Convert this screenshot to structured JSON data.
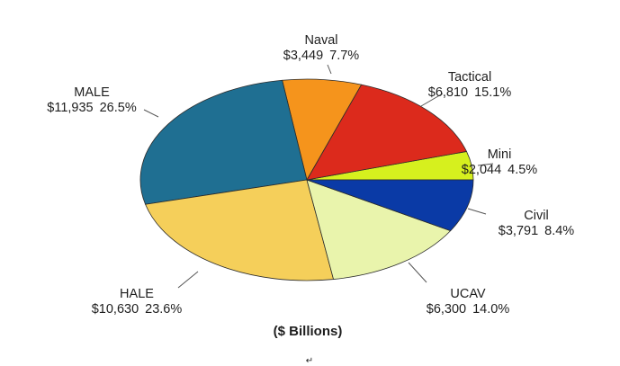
{
  "chart_data": {
    "type": "pie",
    "title": "",
    "unit_note": "($ Billions)",
    "start_angle_deg": 0,
    "direction": "counterclockwise",
    "slices": [
      {
        "name": "Mini",
        "amount": "$2,044",
        "percent": "4.5%",
        "value": 2044,
        "color": "#d6f01e"
      },
      {
        "name": "Tactical",
        "amount": "$6,810",
        "percent": "15.1%",
        "value": 6810,
        "color": "#dc2a1c"
      },
      {
        "name": "Naval",
        "amount": "$3,449",
        "percent": "7.7%",
        "value": 3449,
        "color": "#f5941c"
      },
      {
        "name": "MALE",
        "amount": "$11,935",
        "percent": "26.5%",
        "value": 11935,
        "color": "#1f6f92"
      },
      {
        "name": "HALE",
        "amount": "$10,630",
        "percent": "23.6%",
        "value": 10630,
        "color": "#f5cf5a"
      },
      {
        "name": "UCAV",
        "amount": "$6,300",
        "percent": "14.0%",
        "value": 6300,
        "color": "#e9f4ac"
      },
      {
        "name": "Civil",
        "amount": "$3,791",
        "percent": "8.4%",
        "value": 3791,
        "color": "#0a3aa6"
      }
    ]
  },
  "page_mark": "↵"
}
